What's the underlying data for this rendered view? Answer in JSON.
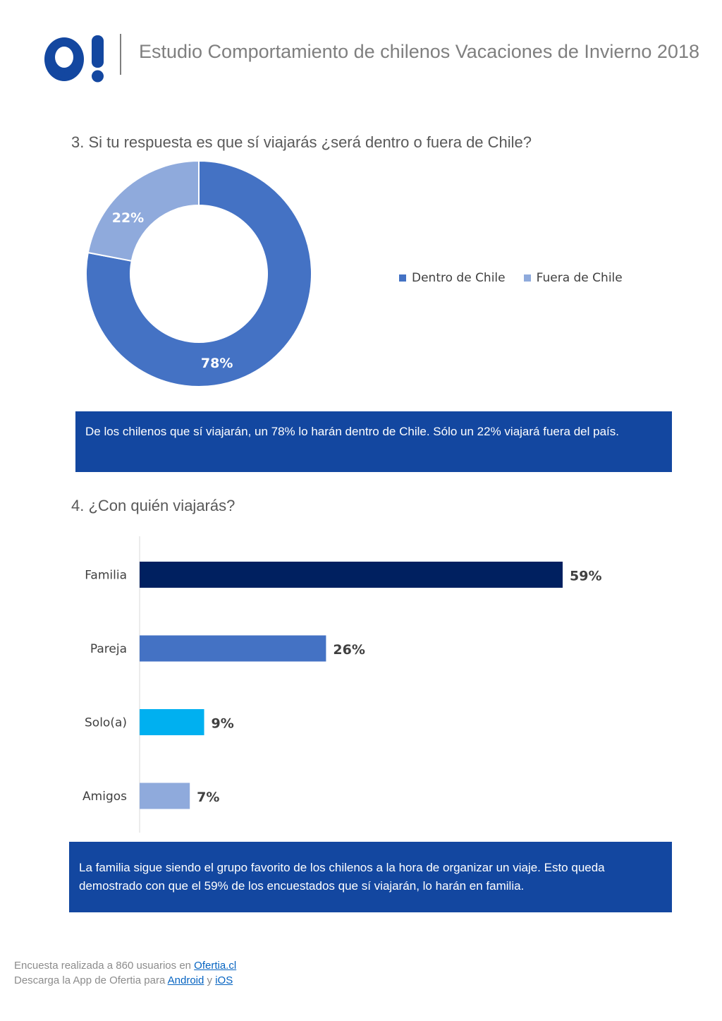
{
  "header": {
    "logo_text": "O!",
    "title": "Estudio Comportamiento de chilenos Vacaciones de Invierno 2018"
  },
  "question3": {
    "title": "3. Si tu respuesta es que sí viajarás ¿será dentro o fuera de Chile?",
    "callout": "De los chilenos que sí viajarán, un 78% lo harán dentro de Chile. Sólo un 22% viajará fuera del país."
  },
  "question4": {
    "title": "4. ¿Con quién viajarás?",
    "callout": "La familia sigue siendo el grupo favorito de los chilenos a la hora de organizar un viaje. Esto queda demostrado con que el 59% de los encuestados que sí viajarán, lo harán en familia."
  },
  "footer": {
    "line1_prefix": "Encuesta realizada a 860 usuarios en ",
    "line1_link": "Ofertia.cl",
    "line2_prefix": "Descarga la App de Ofertia para ",
    "line2_link1": "Android",
    "line2_mid": " y ",
    "line2_link2": "iOS"
  },
  "chart_data": [
    {
      "type": "pie",
      "variant": "donut",
      "categories": [
        "Dentro de Chile",
        "Fuera de Chile"
      ],
      "values": [
        78,
        22
      ],
      "data_labels": [
        "78%",
        "22%"
      ],
      "colors": [
        "#4472c4",
        "#8faadc"
      ],
      "legend": "right"
    },
    {
      "type": "bar",
      "orientation": "horizontal",
      "categories": [
        "Familia",
        "Pareja",
        "Solo(a)",
        "Amigos"
      ],
      "values": [
        59,
        26,
        9,
        7
      ],
      "data_labels": [
        "59%",
        "26%",
        "9%",
        "7%"
      ],
      "colors": [
        "#002060",
        "#4472c4",
        "#00b0f0",
        "#8faadc"
      ],
      "grid": false
    }
  ]
}
